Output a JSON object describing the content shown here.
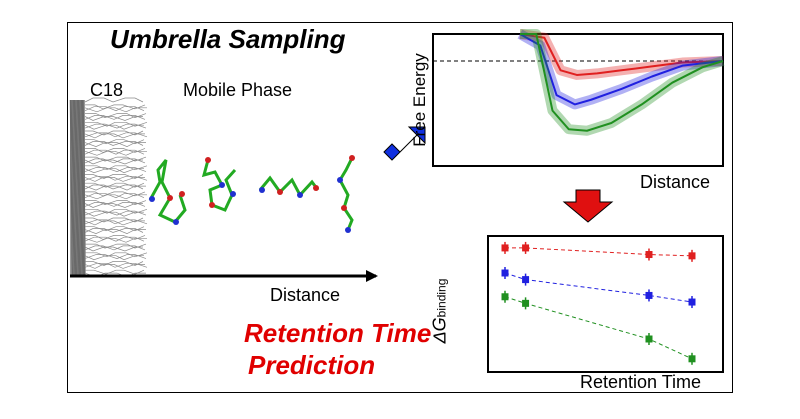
{
  "title": "Umbrella Sampling",
  "labels": {
    "c18": "C18",
    "mobile_phase": "Mobile Phase",
    "distance_axis": "Distance",
    "prediction_line1": "Retention Time",
    "prediction_line2": "Prediction"
  },
  "colors": {
    "prediction_text": "#e00000",
    "arrow_blue": "#1030e0",
    "arrow_red": "#e01010",
    "series": [
      "#e02020",
      "#2020e0",
      "#209020"
    ]
  },
  "chart_data": [
    {
      "type": "line",
      "ylabel": "Free Energy",
      "xlabel": "Distance",
      "reference_line": "dashed horizontal at zero",
      "series": [
        {
          "color": "#e02020",
          "x": [
            0.0,
            0.12,
            0.2,
            0.28,
            0.38,
            0.5,
            0.65,
            0.8,
            1.0
          ],
          "y": [
            9.0,
            1.5,
            -0.6,
            -0.9,
            -0.8,
            -0.6,
            -0.35,
            -0.1,
            0.0
          ]
        },
        {
          "color": "#2020e0",
          "x": [
            0.0,
            0.1,
            0.18,
            0.27,
            0.35,
            0.5,
            0.65,
            0.8,
            1.0
          ],
          "y": [
            9.0,
            1.0,
            -2.2,
            -2.8,
            -2.5,
            -1.8,
            -1.0,
            -0.3,
            0.0
          ]
        },
        {
          "color": "#209020",
          "x": [
            0.0,
            0.08,
            0.16,
            0.24,
            0.33,
            0.45,
            0.6,
            0.75,
            0.9,
            1.0
          ],
          "y": [
            9.0,
            2.0,
            -3.2,
            -4.4,
            -4.5,
            -4.0,
            -2.8,
            -1.4,
            -0.4,
            0.0
          ]
        }
      ]
    },
    {
      "type": "scatter",
      "ylabel": "ΔGbinding",
      "xlabel": "Retention Time",
      "series": [
        {
          "color": "#e02020",
          "x": [
            0.0,
            0.11,
            0.77,
            1.0
          ],
          "y": [
            0.94,
            0.94,
            0.89,
            0.88
          ]
        },
        {
          "color": "#2020e0",
          "x": [
            0.0,
            0.11,
            0.77,
            1.0
          ],
          "y": [
            0.75,
            0.7,
            0.58,
            0.53
          ]
        },
        {
          "color": "#209020",
          "x": [
            0.0,
            0.11,
            0.77,
            1.0
          ],
          "y": [
            0.57,
            0.52,
            0.25,
            0.1
          ]
        }
      ]
    }
  ]
}
